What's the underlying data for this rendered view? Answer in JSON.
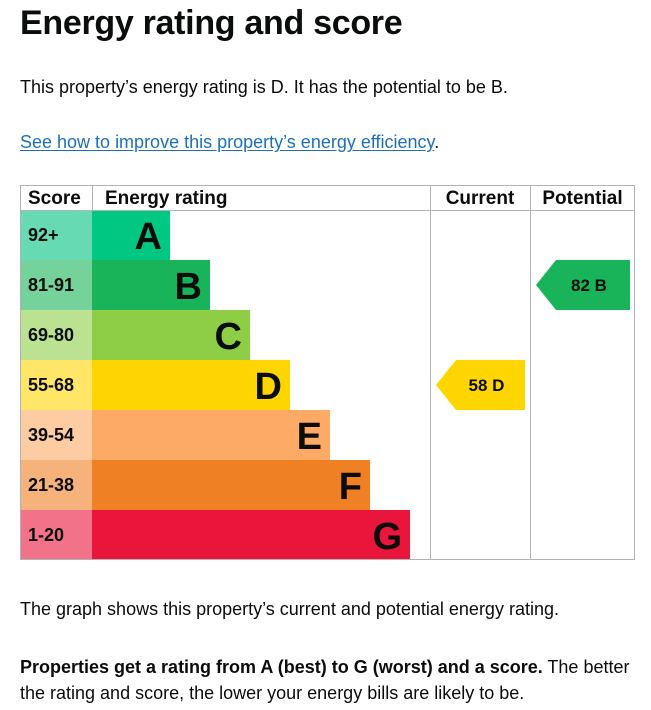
{
  "page": {
    "title": "Energy rating and score",
    "summary": "This property’s energy rating is D. It has the potential to be B.",
    "improve_link": "See how to improve this property’s energy efficiency",
    "improve_suffix": ".",
    "caption": "The graph shows this property’s current and potential energy rating.",
    "explain_bold": "Properties get a rating from A (best) to G (worst) and a score.",
    "explain_rest": " The better the rating and score, the lower your energy bills are likely to be."
  },
  "chart_data": {
    "type": "table",
    "headers": {
      "score": "Score",
      "rating": "Energy rating",
      "current": "Current",
      "potential": "Potential"
    },
    "bands": [
      {
        "letter": "A",
        "range": "92+",
        "color": "#00c781",
        "score_bg": "#66dab3"
      },
      {
        "letter": "B",
        "range": "81-91",
        "color": "#19b459",
        "score_bg": "#75d29b"
      },
      {
        "letter": "C",
        "range": "69-80",
        "color": "#8dce46",
        "score_bg": "#bbe290"
      },
      {
        "letter": "D",
        "range": "55-68",
        "color": "#ffd500",
        "score_bg": "#ffe666"
      },
      {
        "letter": "E",
        "range": "39-54",
        "color": "#fcaa65",
        "score_bg": "#fdcca3"
      },
      {
        "letter": "F",
        "range": "21-38",
        "color": "#ef8023",
        "score_bg": "#f5b37b"
      },
      {
        "letter": "G",
        "range": "1-20",
        "color": "#e9153b",
        "score_bg": "#f27389"
      }
    ],
    "current": {
      "score": 58,
      "rating": "D",
      "label": "58  D"
    },
    "potential": {
      "score": 82,
      "rating": "B",
      "label": "82  B"
    }
  }
}
